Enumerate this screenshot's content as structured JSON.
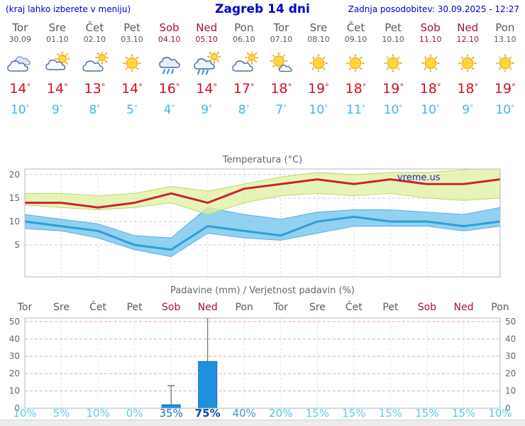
{
  "header": {
    "note": "(kraj lahko izberete v meniju)",
    "title": "Zagreb 14 dni",
    "updated": "Zadnja posodobitev: 30.09.2025 - 12:27"
  },
  "colors": {
    "accent_blue": "#0000cc",
    "weekday_text": "#5a5a5a",
    "weekend_text": "#a5123a",
    "temp_high": "#cc1122",
    "temp_low": "#3fb6ea",
    "max_line": "#cc2233",
    "min_line": "#2e9fd6",
    "max_band": "#dff0a0",
    "min_band": "#7fc9ec",
    "bar_fill": "#2090de",
    "bar_stroke": "#1668aa",
    "grid_gray": "#cccccc",
    "grid_red": "#eaa6a6"
  },
  "forecast": {
    "deg": "°",
    "days": [
      {
        "name": "Tor",
        "date": "30.09",
        "icon": "cloudy",
        "high": "14",
        "low": "10",
        "weekend": false
      },
      {
        "name": "Sre",
        "date": "01.10",
        "icon": "partly-cloudy",
        "high": "14",
        "low": "9",
        "weekend": false
      },
      {
        "name": "Čet",
        "date": "02.10",
        "icon": "mostly-cloudy",
        "high": "13",
        "low": "8",
        "weekend": false
      },
      {
        "name": "Pet",
        "date": "03.10",
        "icon": "sunny",
        "high": "14",
        "low": "5",
        "weekend": false
      },
      {
        "name": "Sob",
        "date": "04.10",
        "icon": "rain",
        "high": "16",
        "low": "4",
        "weekend": true
      },
      {
        "name": "Ned",
        "date": "05.10",
        "icon": "showers",
        "high": "14",
        "low": "9",
        "weekend": true
      },
      {
        "name": "Pon",
        "date": "06.10",
        "icon": "mostly-cloudy",
        "high": "17",
        "low": "8",
        "weekend": false
      },
      {
        "name": "Tor",
        "date": "07.10",
        "icon": "mostly-sunny",
        "high": "18",
        "low": "7",
        "weekend": false
      },
      {
        "name": "Sre",
        "date": "08.10",
        "icon": "sunny",
        "high": "19",
        "low": "10",
        "weekend": false
      },
      {
        "name": "Čet",
        "date": "09.10",
        "icon": "sunny",
        "high": "18",
        "low": "11",
        "weekend": false
      },
      {
        "name": "Pet",
        "date": "10.10",
        "icon": "sunny",
        "high": "19",
        "low": "10",
        "weekend": false
      },
      {
        "name": "Sob",
        "date": "11.10",
        "icon": "sunny",
        "high": "18",
        "low": "10",
        "weekend": true
      },
      {
        "name": "Ned",
        "date": "12.10",
        "icon": "sunny",
        "high": "18",
        "low": "9",
        "weekend": true
      },
      {
        "name": "Pon",
        "date": "13.10",
        "icon": "sunny",
        "high": "19",
        "low": "10",
        "weekend": false
      }
    ]
  },
  "chart_data": [
    {
      "type": "line",
      "title": "Temperatura (°C)",
      "watermark": "vreme.us",
      "x_labels": [
        "Tor",
        "Sre",
        "Čet",
        "Pet",
        "Sob",
        "Ned",
        "Pon",
        "Tor",
        "Sre",
        "Čet",
        "Pet",
        "Sob",
        "Ned",
        "Pon"
      ],
      "ylim": [
        -1.8,
        21.2
      ],
      "yticks": [
        5,
        10,
        15,
        20
      ],
      "grid": true,
      "series": [
        {
          "name": "min-temp",
          "values": [
            10,
            9,
            8,
            5,
            4,
            9,
            8,
            7,
            10,
            11,
            10,
            10,
            9,
            10
          ],
          "color": "#2e9fd6"
        },
        {
          "name": "max-temp",
          "values": [
            14,
            14,
            13,
            14,
            16,
            14,
            17,
            18,
            19,
            18,
            19,
            18,
            18,
            19
          ],
          "color": "#cc2233"
        }
      ],
      "bands": [
        {
          "name": "min-range",
          "top": [
            11.5,
            10.5,
            9.5,
            7,
            6.5,
            13,
            11.5,
            10.5,
            12,
            12.5,
            12.5,
            12,
            11.5,
            13
          ],
          "bottom": [
            8.5,
            8,
            6.5,
            4,
            2.5,
            7.5,
            6.5,
            6,
            7.5,
            9,
            9,
            9,
            8,
            9
          ],
          "color": "#7fc9ec"
        },
        {
          "name": "max-range",
          "top": [
            16,
            16,
            15.5,
            16,
            17.5,
            16.5,
            18,
            19.5,
            20.5,
            20,
            20.5,
            20.5,
            21,
            22
          ],
          "bottom": [
            13.5,
            13,
            12.5,
            13,
            14,
            11.5,
            14,
            15.5,
            16,
            15.5,
            16,
            15,
            14.5,
            15
          ],
          "color": "#dff0a0"
        }
      ]
    },
    {
      "type": "bar",
      "title": "Padavine (mm) / Verjetnost padavin (%)",
      "categories": [
        "Tor",
        "Sre",
        "Čet",
        "Pet",
        "Sob",
        "Ned",
        "Pon",
        "Tor",
        "Sre",
        "Čet",
        "Pet",
        "Sob",
        "Ned",
        "Pon"
      ],
      "weekend_flags": [
        false,
        false,
        false,
        false,
        true,
        true,
        false,
        false,
        false,
        false,
        false,
        true,
        true,
        false
      ],
      "values": [
        0,
        0,
        0,
        0,
        2,
        27,
        0,
        0,
        0,
        0,
        0,
        0,
        0,
        0
      ],
      "whisker_max": [
        0,
        0,
        0,
        0,
        13,
        52,
        0,
        0,
        0,
        0,
        0,
        0,
        0,
        0
      ],
      "ylim": [
        0,
        52
      ],
      "yticks": [
        0,
        10,
        20,
        30,
        40,
        50
      ],
      "probabilities": [
        {
          "label": "10%",
          "color": "#55d0e8",
          "bold": false
        },
        {
          "label": "5%",
          "color": "#55d0e8",
          "bold": false
        },
        {
          "label": "10%",
          "color": "#55d0e8",
          "bold": false
        },
        {
          "label": "0%",
          "color": "#55d0e8",
          "bold": false
        },
        {
          "label": "35%",
          "color": "#2070b8",
          "bold": false
        },
        {
          "label": "75%",
          "color": "#0a4a9e",
          "bold": true
        },
        {
          "label": "40%",
          "color": "#3a9ad2",
          "bold": false
        },
        {
          "label": "20%",
          "color": "#4fc4e4",
          "bold": false
        },
        {
          "label": "15%",
          "color": "#55d0e8",
          "bold": false
        },
        {
          "label": "15%",
          "color": "#55d0e8",
          "bold": false
        },
        {
          "label": "15%",
          "color": "#55d0e8",
          "bold": false
        },
        {
          "label": "15%",
          "color": "#55d0e8",
          "bold": false
        },
        {
          "label": "15%",
          "color": "#55d0e8",
          "bold": false
        },
        {
          "label": "10%",
          "color": "#55d0e8",
          "bold": false
        }
      ]
    }
  ]
}
